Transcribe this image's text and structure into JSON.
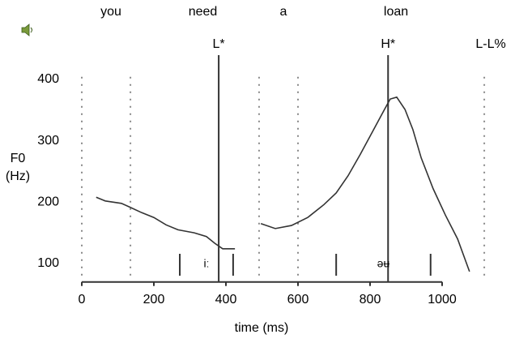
{
  "chart_data": {
    "type": "line",
    "words": [
      "you",
      "need",
      "a",
      "loan"
    ],
    "boundaries": [
      0,
      135,
      492,
      600,
      1117
    ],
    "tones": [
      {
        "label": "L*",
        "time": 380
      },
      {
        "label": "H*",
        "time": 850
      },
      {
        "label": "L-L%",
        "time": null
      }
    ],
    "segments": [
      {
        "label": "iː",
        "start": 272,
        "end": 420
      },
      {
        "label": "əʉ",
        "start": 706,
        "end": 968
      }
    ],
    "xlabel": "time (ms)",
    "ylabel": [
      "F0",
      "(Hz)"
    ],
    "x": [
      40,
      65,
      110,
      133,
      166,
      200,
      234,
      267,
      312,
      346,
      369,
      391,
      425,
      null,
      497,
      537,
      582,
      627,
      672,
      706,
      739,
      773,
      807,
      840,
      856,
      874,
      897,
      919,
      942,
      975,
      1009,
      1043,
      1076
    ],
    "series": [
      {
        "name": "F0",
        "color": "#333333",
        "values": [
          208,
          202,
          198,
          192,
          183,
          175,
          163,
          155,
          150,
          144,
          133,
          124,
          124,
          null,
          165,
          157,
          162,
          175,
          196,
          215,
          243,
          278,
          315,
          351,
          368,
          371,
          351,
          318,
          272,
          222,
          179,
          140,
          87
        ]
      }
    ],
    "xlim": [
      0,
      1120
    ],
    "xticks": [
      0,
      200,
      400,
      600,
      800,
      1000
    ],
    "ylim": [
      70,
      420
    ],
    "yticks": [
      100,
      200,
      300,
      400
    ]
  }
}
